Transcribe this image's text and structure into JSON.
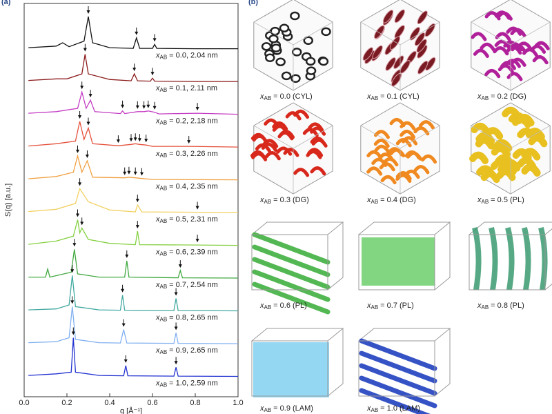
{
  "panel_a_label": "(a)",
  "panel_b_label": "(b)",
  "chart_data": {
    "type": "line",
    "xlabel": "q [Å⁻¹]",
    "ylabel": "S(q) [a.u.]",
    "xlim": [
      0,
      1
    ],
    "xticks": [
      {
        "value": 0,
        "label": "0.0"
      },
      0.2,
      0.4,
      0.6,
      0.8,
      {
        "value": 1,
        "label": "1.0"
      }
    ],
    "ylim": [
      0,
      12
    ],
    "label_symbol": "x",
    "label_subscript": "AB",
    "series": [
      {
        "name": "= 0.0, 2.04 nm",
        "color": "#111111",
        "x": [
          0.02,
          0.15,
          0.18,
          0.21,
          0.28,
          0.3,
          0.32,
          0.4,
          0.51,
          0.525,
          0.54,
          0.6,
          0.61,
          0.62,
          0.8,
          1.0
        ],
        "values": [
          0.05,
          0.1,
          0.2,
          0.08,
          0.25,
          1.0,
          0.2,
          0.05,
          0.03,
          0.35,
          0.03,
          0.03,
          0.15,
          0.03,
          0.02,
          0.02
        ],
        "peaks": [
          0.3,
          0.525,
          0.61
        ]
      },
      {
        "name": "= 0.1, 2.11 nm",
        "color": "#8b1a1a",
        "x": [
          0.02,
          0.15,
          0.2,
          0.27,
          0.285,
          0.3,
          0.4,
          0.5,
          0.515,
          0.53,
          0.59,
          0.6,
          0.61,
          0.8,
          1.0
        ],
        "values": [
          0.05,
          0.1,
          0.1,
          0.25,
          0.85,
          0.25,
          0.08,
          0.04,
          0.25,
          0.04,
          0.03,
          0.12,
          0.03,
          0.02,
          0.02
        ],
        "peaks": [
          0.285,
          0.515,
          0.6
        ]
      },
      {
        "name": "= 0.2, 2.18 nm",
        "color": "#c43cc4",
        "x": [
          0.02,
          0.15,
          0.25,
          0.27,
          0.29,
          0.31,
          0.33,
          0.45,
          0.46,
          0.47,
          0.53,
          0.56,
          0.58,
          0.61,
          0.63,
          0.81,
          1.0
        ],
        "values": [
          0.05,
          0.1,
          0.2,
          0.7,
          0.2,
          0.45,
          0.1,
          0.04,
          0.12,
          0.04,
          0.1,
          0.1,
          0.12,
          0.08,
          0.03,
          0.05,
          0.02
        ],
        "peaks": [
          0.27,
          0.31,
          0.46,
          0.53,
          0.56,
          0.58,
          0.61,
          0.81
        ]
      },
      {
        "name": "= 0.3, 2.26 nm",
        "color": "#e4503a",
        "x": [
          0.02,
          0.15,
          0.24,
          0.26,
          0.28,
          0.3,
          0.32,
          0.44,
          0.5,
          0.52,
          0.54,
          0.57,
          0.6,
          0.77,
          1.0
        ],
        "values": [
          0.05,
          0.12,
          0.2,
          0.8,
          0.25,
          0.6,
          0.12,
          0.06,
          0.1,
          0.12,
          0.1,
          0.08,
          0.04,
          0.04,
          0.02
        ],
        "peaks": [
          0.26,
          0.3,
          0.44,
          0.5,
          0.52,
          0.54,
          0.57,
          0.77
        ]
      },
      {
        "name": "= 0.4, 2.35 nm",
        "color": "#f0a040",
        "x": [
          0.02,
          0.15,
          0.23,
          0.25,
          0.27,
          0.295,
          0.32,
          0.47,
          0.49,
          0.52,
          0.55,
          0.6,
          1.0
        ],
        "values": [
          0.05,
          0.12,
          0.25,
          0.75,
          0.25,
          0.6,
          0.1,
          0.08,
          0.1,
          0.08,
          0.06,
          0.03,
          0.02
        ],
        "peaks": [
          0.25,
          0.295,
          0.47,
          0.49,
          0.52,
          0.55
        ]
      },
      {
        "name": "= 0.5, 2.31 nm",
        "color": "#f2d060",
        "x": [
          0.02,
          0.15,
          0.24,
          0.26,
          0.3,
          0.4,
          0.52,
          0.53,
          0.55,
          0.81,
          1.0
        ],
        "values": [
          0.05,
          0.12,
          0.3,
          0.75,
          0.35,
          0.1,
          0.04,
          0.25,
          0.04,
          0.03,
          0.02
        ],
        "peaks": [
          0.26,
          0.53,
          0.81
        ]
      },
      {
        "name": "= 0.6, 2.39 nm",
        "color": "#84d040",
        "x": [
          0.02,
          0.15,
          0.23,
          0.25,
          0.26,
          0.27,
          0.3,
          0.4,
          0.52,
          0.53,
          0.54,
          0.81,
          1.0
        ],
        "values": [
          0.05,
          0.15,
          0.3,
          0.8,
          0.4,
          0.55,
          0.2,
          0.08,
          0.04,
          0.45,
          0.04,
          0.03,
          0.02
        ],
        "peaks": [
          0.25,
          0.27,
          0.53,
          0.81
        ]
      },
      {
        "name": "= 0.7, 2.54 nm",
        "color": "#40a840",
        "x": [
          0.02,
          0.1,
          0.11,
          0.12,
          0.22,
          0.235,
          0.25,
          0.35,
          0.47,
          0.48,
          0.49,
          0.72,
          0.73,
          0.74,
          1.0
        ],
        "values": [
          0.05,
          0.05,
          0.3,
          0.05,
          0.2,
          0.9,
          0.15,
          0.05,
          0.05,
          0.55,
          0.05,
          0.03,
          0.25,
          0.03,
          0.02
        ],
        "peaks": [
          0.235,
          0.48,
          0.73
        ]
      },
      {
        "name": "= 0.8, 2.65 nm",
        "color": "#40a8a0",
        "x": [
          0.02,
          0.15,
          0.21,
          0.225,
          0.24,
          0.35,
          0.45,
          0.46,
          0.47,
          0.7,
          0.71,
          0.72,
          1.0
        ],
        "values": [
          0.05,
          0.08,
          0.2,
          1.1,
          0.15,
          0.05,
          0.04,
          0.5,
          0.04,
          0.03,
          0.4,
          0.03,
          0.02
        ],
        "peaks": [
          0.225,
          0.46,
          0.71
        ]
      },
      {
        "name": "= 0.9, 2.65 nm",
        "color": "#80b0f0",
        "x": [
          0.02,
          0.15,
          0.21,
          0.225,
          0.24,
          0.35,
          0.45,
          0.465,
          0.48,
          0.7,
          0.71,
          0.72,
          1.0
        ],
        "values": [
          0.05,
          0.08,
          0.2,
          1.15,
          0.15,
          0.05,
          0.04,
          0.45,
          0.04,
          0.03,
          0.35,
          0.03,
          0.02
        ],
        "peaks": [
          0.225,
          0.465,
          0.71
        ]
      },
      {
        "name": "= 1.0, 2.59 nm",
        "color": "#2030d0",
        "x": [
          0.02,
          0.15,
          0.22,
          0.23,
          0.24,
          0.35,
          0.465,
          0.475,
          0.485,
          0.7,
          0.71,
          0.72,
          1.0
        ],
        "values": [
          0.05,
          0.1,
          0.15,
          1.2,
          0.15,
          0.05,
          0.04,
          0.35,
          0.04,
          0.03,
          0.3,
          0.03,
          0.02
        ],
        "peaks": [
          0.23,
          0.475,
          0.71
        ]
      }
    ]
  },
  "morphologies": {
    "symbol": "x",
    "subscript": "AB",
    "panels": [
      {
        "caption": "= 0.0 (CYL)",
        "color": "#555555"
      },
      {
        "caption": "= 0.1 (CYL)",
        "color": "#7a1a22"
      },
      {
        "caption": "= 0.2 (DG)",
        "color": "#b0209a"
      },
      {
        "caption": "= 0.3 (DG)",
        "color": "#d8281c"
      },
      {
        "caption": "= 0.4 (DG)",
        "color": "#f08a20"
      },
      {
        "caption": "= 0.5 (PL)",
        "color": "#e8c020"
      },
      {
        "caption": "= 0.6 (PL)",
        "color": "#40b040"
      },
      {
        "caption": "= 0.7 (PL)",
        "color": "#58c858"
      },
      {
        "caption": "= 0.8 (PL)",
        "color": "#3a9a70"
      },
      {
        "caption": "= 0.9 (LAM)",
        "color": "#80d0f0"
      },
      {
        "caption": "= 1.0 (LAM)",
        "color": "#2040c0"
      }
    ]
  }
}
